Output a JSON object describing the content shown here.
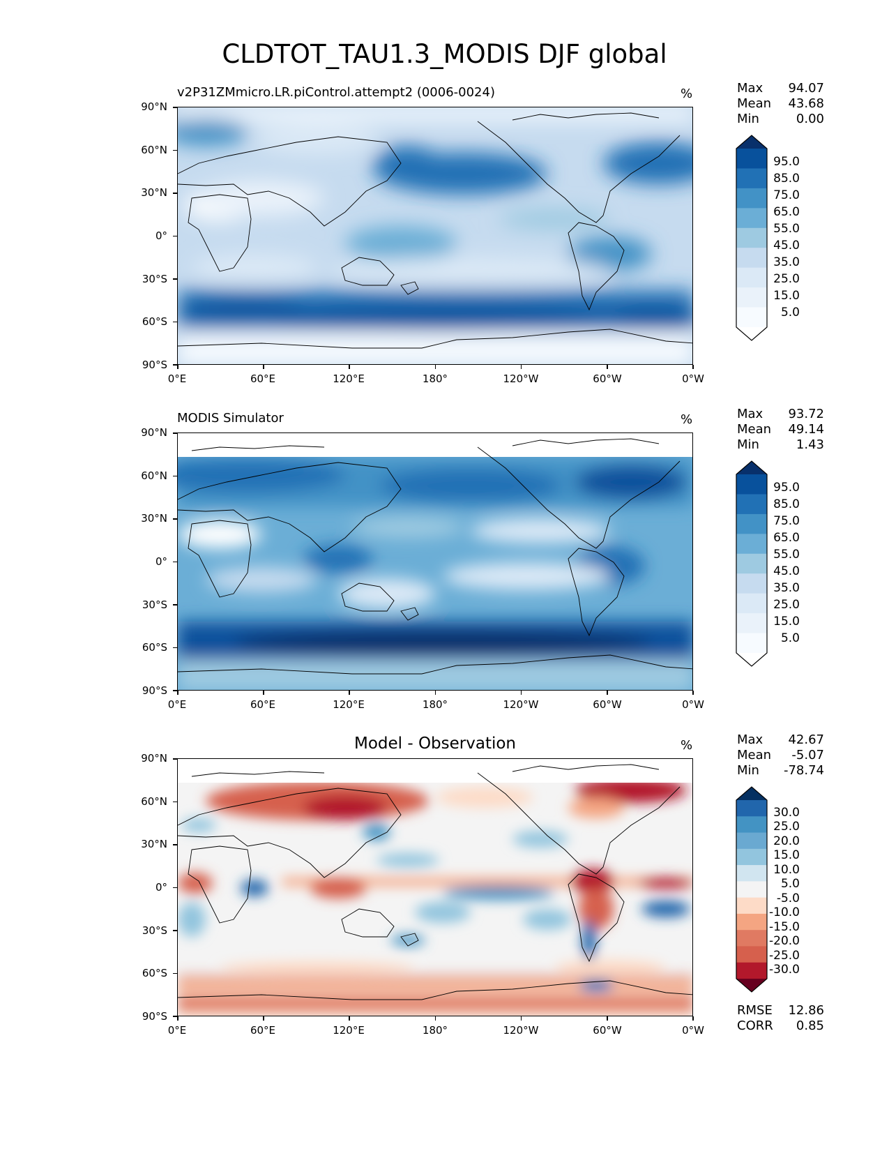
{
  "figure": {
    "title": "CLDTOT_TAU1.3_MODIS DJF global"
  },
  "axes": {
    "lat_labels": [
      "90°N",
      "60°N",
      "30°N",
      "0°",
      "30°S",
      "60°S",
      "90°S"
    ],
    "lon_labels": [
      "0°E",
      "60°E",
      "120°E",
      "180°",
      "120°W",
      "60°W",
      "0°W"
    ]
  },
  "panels": [
    {
      "id": "model",
      "title": "v2P31ZMmicro.LR.piControl.attempt2 (0006-0024)",
      "units": "%",
      "stats": [
        {
          "label": "Max",
          "value": "94.07"
        },
        {
          "label": "Mean",
          "value": "43.68"
        },
        {
          "label": "Min",
          "value": "0.00"
        }
      ],
      "colorbar": {
        "labels": [
          "95.0",
          "85.0",
          "75.0",
          "65.0",
          "55.0",
          "45.0",
          "35.0",
          "25.0",
          "15.0",
          "5.0"
        ],
        "colors": [
          "#08306b",
          "#08519c",
          "#2171b5",
          "#4292c6",
          "#6baed6",
          "#9ecae1",
          "#c6dbef",
          "#dbe9f6",
          "#eaf2fa",
          "#f7fbff",
          "#ffffff"
        ]
      }
    },
    {
      "id": "obs",
      "title": "MODIS Simulator",
      "units": "%",
      "stats": [
        {
          "label": "Max",
          "value": "93.72"
        },
        {
          "label": "Mean",
          "value": "49.14"
        },
        {
          "label": "Min",
          "value": "1.43"
        }
      ],
      "colorbar": {
        "labels": [
          "95.0",
          "85.0",
          "75.0",
          "65.0",
          "55.0",
          "45.0",
          "35.0",
          "25.0",
          "15.0",
          "5.0"
        ],
        "colors": [
          "#08306b",
          "#08519c",
          "#2171b5",
          "#4292c6",
          "#6baed6",
          "#9ecae1",
          "#c6dbef",
          "#dbe9f6",
          "#eaf2fa",
          "#f7fbff",
          "#ffffff"
        ]
      }
    },
    {
      "id": "diff",
      "title": "Model - Observation",
      "units": "%",
      "stats": [
        {
          "label": "Max",
          "value": "42.67"
        },
        {
          "label": "Mean",
          "value": "-5.07"
        },
        {
          "label": "Min",
          "value": "-78.74"
        }
      ],
      "extra_stats": [
        {
          "label": "RMSE",
          "value": "12.86"
        },
        {
          "label": "CORR",
          "value": "0.85"
        }
      ],
      "colorbar": {
        "labels": [
          "30.0",
          "25.0",
          "20.0",
          "15.0",
          "10.0",
          "5.0",
          "-5.0",
          "-10.0",
          "-15.0",
          "-20.0",
          "-25.0",
          "-30.0"
        ],
        "colors": [
          "#053061",
          "#2166ac",
          "#4393c3",
          "#6aa9d1",
          "#92c5de",
          "#d1e5f0",
          "#f4f4f4",
          "#fddbc7",
          "#f4a582",
          "#e07a62",
          "#d6604d",
          "#b2182b",
          "#67001f"
        ]
      }
    }
  ]
}
